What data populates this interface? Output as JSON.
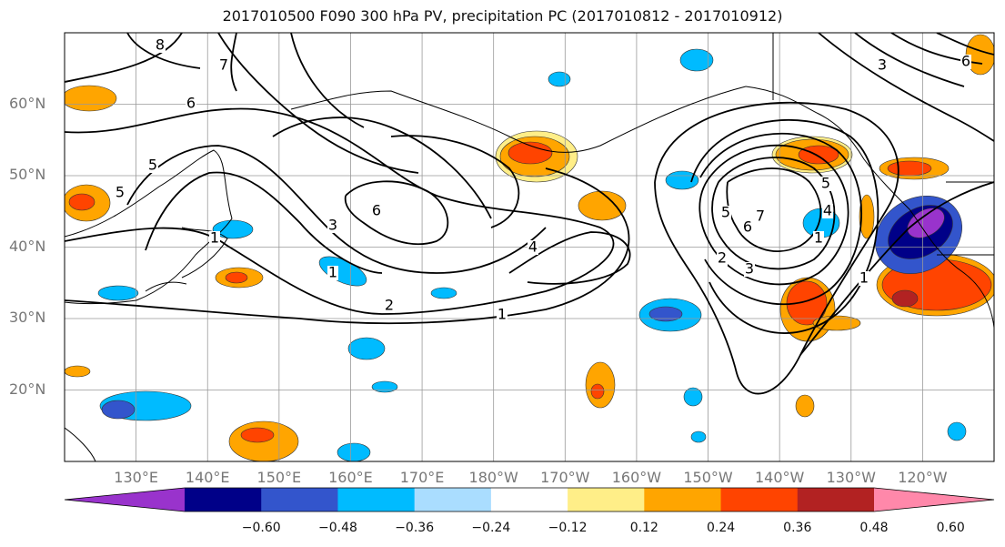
{
  "title": "2017010500 F090 300 hPa PV, precipitation PC (2017010812 - 2017010912)",
  "map": {
    "lat_labels": [
      {
        "text": "60°N",
        "lat": 60
      },
      {
        "text": "50°N",
        "lat": 50
      },
      {
        "text": "40°N",
        "lat": 40
      },
      {
        "text": "30°N",
        "lat": 30
      },
      {
        "text": "20°N",
        "lat": 20
      }
    ],
    "lon_labels": [
      "130°E",
      "140°E",
      "150°E",
      "160°E",
      "170°E",
      "180°W",
      "170°W",
      "160°W",
      "150°W",
      "140°W",
      "130°W",
      "120°W"
    ],
    "lon_range": [
      120,
      250
    ],
    "lat_range": [
      10,
      70
    ],
    "contour_labels": [
      "8",
      "7",
      "6",
      "5",
      "5",
      "6",
      "4",
      "1",
      "2",
      "3",
      "1",
      "1",
      "2",
      "3",
      "5",
      "6",
      "7",
      "5",
      "4",
      "1",
      "3",
      "6",
      "1"
    ]
  },
  "colorbar": {
    "ticks": [
      "−0.60",
      "−0.48",
      "−0.36",
      "−0.24",
      "−0.12",
      "0.12",
      "0.24",
      "0.36",
      "0.48",
      "0.60"
    ],
    "colors": [
      "#9933cc",
      "#000088",
      "#3355cc",
      "#00bbff",
      "#aaddff",
      "#ffffff",
      "#ffee88",
      "#ffa500",
      "#ff4400",
      "#b22222",
      "#ff88aa"
    ]
  },
  "colors": {
    "pos_weak": "#ffee88",
    "pos_mid": "#ffa500",
    "pos_strong": "#ff4400",
    "pos_max": "#b22222",
    "neg_weak": "#aaddff",
    "neg_mid": "#00bbff",
    "neg_strong": "#3355cc",
    "neg_max": "#000088",
    "neg_ext": "#9933cc"
  }
}
